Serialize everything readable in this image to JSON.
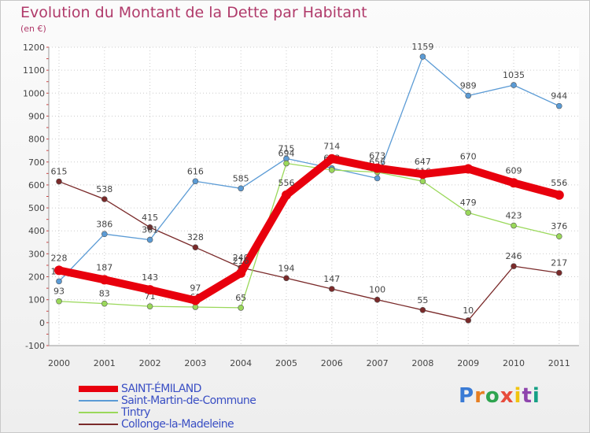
{
  "title": "Evolution du Montant de la Dette par Habitant",
  "unit": "(en €)",
  "brand": "Proxiti",
  "chart_data": {
    "type": "line",
    "x": [
      "2000",
      "2001",
      "2002",
      "2003",
      "2004",
      "2005",
      "2006",
      "2007",
      "2008",
      "2009",
      "2010",
      "2011"
    ],
    "ylim": [
      -100,
      1200
    ],
    "yticks": [
      -100,
      0,
      100,
      200,
      300,
      400,
      500,
      600,
      700,
      800,
      900,
      1000,
      1100,
      1200
    ],
    "grid": true,
    "legend": "bottom-left",
    "series": [
      {
        "name": "SAINT-ÉMILAND",
        "color": "#e8000d",
        "values": [
          228,
          187,
          143,
          97,
          216,
          556,
          714,
          673,
          647,
          670,
          609,
          556
        ]
      },
      {
        "name": "Saint-Martin-de-Commune",
        "color": "#5b9bd5",
        "values": [
          180,
          386,
          361,
          616,
          585,
          715,
          673,
          629,
          1159,
          989,
          1035,
          944
        ]
      },
      {
        "name": "Tintry",
        "color": "#9ad85a",
        "values": [
          93,
          83,
          71,
          68,
          65,
          694,
          665,
          656,
          616,
          479,
          423,
          376
        ]
      },
      {
        "name": "Collonge-la-Madeleine",
        "color": "#7a2a2a",
        "values": [
          615,
          538,
          415,
          328,
          240,
          194,
          147,
          100,
          55,
          10,
          246,
          217
        ]
      }
    ]
  }
}
